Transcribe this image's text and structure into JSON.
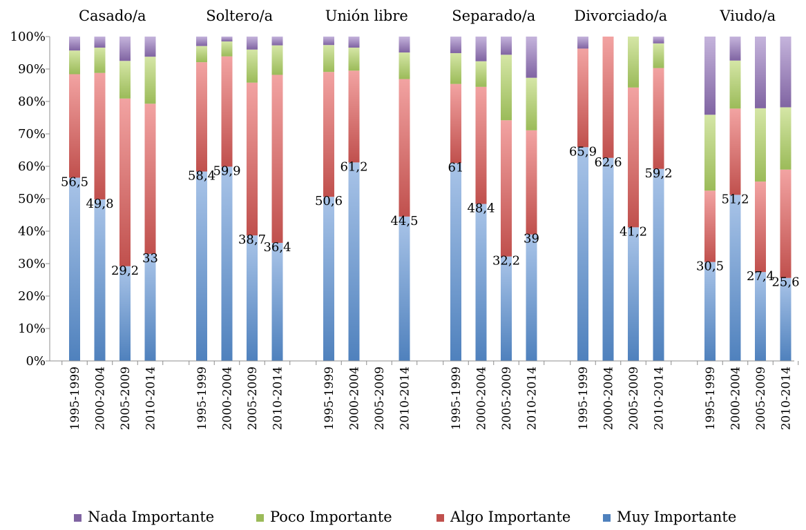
{
  "chart_data": {
    "type": "bar",
    "stacked": "percent",
    "groups": [
      "Casado/a",
      "Soltero/a",
      "Unión libre",
      "Separado/a",
      "Divorciado/a",
      "Viudo/a"
    ],
    "periods": [
      "1995-1999",
      "2000-2004",
      "2005-2009",
      "2010-2014"
    ],
    "y_ticks": [
      "0%",
      "10%",
      "20%",
      "30%",
      "40%",
      "50%",
      "60%",
      "70%",
      "80%",
      "90%",
      "100%"
    ],
    "ylim": [
      0,
      100
    ],
    "legend_position": "bottom",
    "series": [
      {
        "name": "Muy Importante",
        "color": "#4f81bd",
        "light": "#a9c4e8",
        "values": [
          [
            56.5,
            49.8,
            29.2,
            33
          ],
          [
            58.4,
            59.9,
            38.7,
            36.4
          ],
          [
            50.6,
            61.2,
            null,
            44.5
          ],
          [
            61,
            48.4,
            32.2,
            39
          ],
          [
            65.9,
            62.6,
            41.2,
            59.2
          ],
          [
            30.5,
            51.2,
            27.4,
            25.6
          ]
        ],
        "labels": [
          [
            "56,5",
            "49,8",
            "29,2",
            "33"
          ],
          [
            "58,4",
            "59,9",
            "38,7",
            "36,4"
          ],
          [
            "50,6",
            "61,2",
            "",
            "44,5"
          ],
          [
            "61",
            "48,4",
            "32,2",
            "39"
          ],
          [
            "65,9",
            "62,6",
            "41,2",
            "59,2"
          ],
          [
            "30,5",
            "51,2",
            "27,4",
            "25,6"
          ]
        ]
      },
      {
        "name": "Algo Importante",
        "color": "#c0504d",
        "light": "#f2a3a2",
        "values": [
          [
            31.9,
            39.0,
            51.7,
            46.3
          ],
          [
            33.7,
            34.0,
            47.1,
            51.8
          ],
          [
            38.5,
            28.3,
            null,
            42.4
          ],
          [
            24.4,
            36.1,
            42.0,
            32.1
          ],
          [
            30.4,
            37.4,
            43.1,
            31.1
          ],
          [
            22.0,
            26.6,
            27.9,
            33.4
          ]
        ]
      },
      {
        "name": "Poco Importante",
        "color": "#9bbb59",
        "light": "#d5e6a6",
        "values": [
          [
            7.3,
            7.8,
            11.6,
            14.5
          ],
          [
            5.0,
            4.6,
            10.2,
            9.1
          ],
          [
            8.3,
            7.1,
            null,
            8.2
          ],
          [
            9.5,
            7.9,
            20.2,
            16.2
          ],
          [
            0,
            0,
            15.7,
            7.6
          ],
          [
            23.4,
            14.8,
            22.6,
            19.2
          ]
        ]
      },
      {
        "name": "Nada Importante",
        "color": "#8064a2",
        "light": "#c5b4dc",
        "values": [
          [
            4.3,
            3.4,
            7.5,
            6.2
          ],
          [
            2.9,
            1.5,
            4.0,
            2.7
          ],
          [
            2.6,
            3.4,
            null,
            4.9
          ],
          [
            5.1,
            7.6,
            5.6,
            12.7
          ],
          [
            3.7,
            0,
            0,
            2.1
          ],
          [
            24.1,
            7.4,
            22.1,
            21.8
          ]
        ]
      }
    ],
    "legend_order": [
      "Nada Importante",
      "Poco Importante",
      "Algo Importante",
      "Muy Importante"
    ]
  }
}
